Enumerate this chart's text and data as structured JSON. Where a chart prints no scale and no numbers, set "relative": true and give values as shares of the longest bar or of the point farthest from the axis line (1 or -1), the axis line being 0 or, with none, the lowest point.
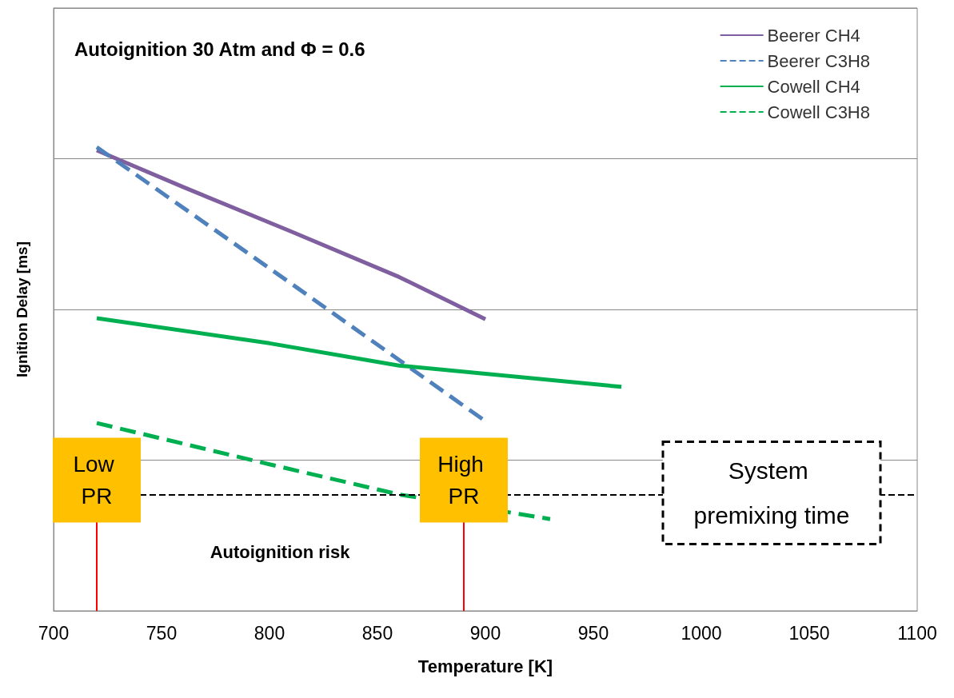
{
  "chart_data": {
    "type": "line",
    "title": "Autoignition 30 Atm and Φ = 0.6",
    "xlabel": "Temperature [K]",
    "ylabel": "Ignition Delay [ms]",
    "relative": true,
    "xlim": [
      700,
      1100
    ],
    "xticks": [
      700,
      750,
      800,
      850,
      900,
      950,
      1000,
      1050,
      1100
    ],
    "grid": "y",
    "legend": "top right",
    "marker": "none",
    "series": [
      {
        "name": "Beerer CH4",
        "color": "#7f5f9f",
        "line_style": "solid",
        "x": [
          720,
          760,
          810,
          860,
          900
        ],
        "values": [
          0.993,
          0.914,
          0.818,
          0.72,
          0.629
        ]
      },
      {
        "name": "Beerer C3H8",
        "color": "#4f81bd",
        "line_style": "dashed",
        "x": [
          720,
          810,
          900
        ],
        "values": [
          1.0,
          0.706,
          0.409
        ]
      },
      {
        "name": "Cowell CH4",
        "color": "#00b050",
        "line_style": "solid",
        "x": [
          720,
          800,
          860,
          963
        ],
        "values": [
          0.631,
          0.577,
          0.529,
          0.483
        ]
      },
      {
        "name": "Cowell C3H8",
        "color": "#00b050",
        "line_style": "dashed",
        "x": [
          720,
          800,
          860,
          930
        ],
        "values": [
          0.405,
          0.316,
          0.251,
          0.198
        ]
      }
    ],
    "ref_lines": [
      {
        "axis": "y",
        "value": 0.249,
        "label": "System premixing time",
        "color": "#000000",
        "line_style": "dashed"
      },
      {
        "axis": "x",
        "value": 720,
        "label": "Low PR",
        "color": "#ff0000"
      },
      {
        "axis": "x",
        "value": 890,
        "label": "High PR",
        "color": "#ff0000"
      }
    ],
    "annotations": [
      "Autoignition risk"
    ]
  }
}
